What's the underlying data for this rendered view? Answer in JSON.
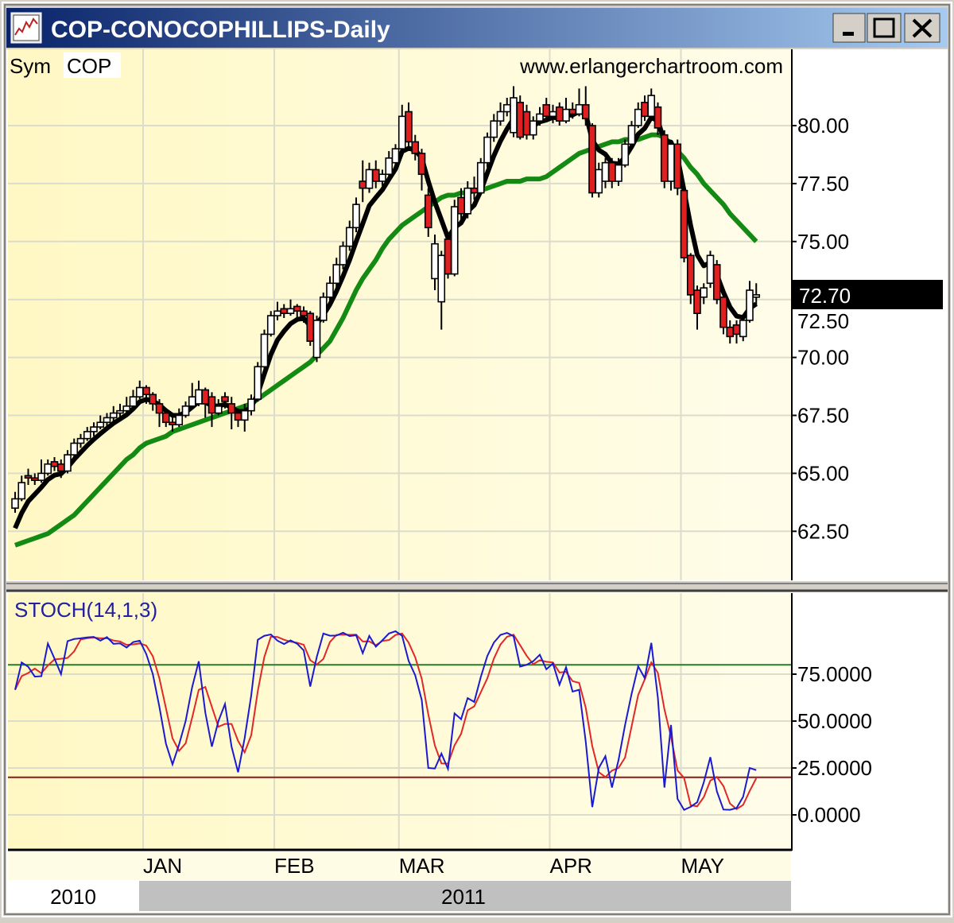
{
  "window": {
    "title": "COP-CONOCOPHILLIPS-Daily",
    "buttons": {
      "minimize": "minimize",
      "maximize": "maximize",
      "close": "close"
    }
  },
  "header": {
    "sym_label": "Sym",
    "sym_value": "COP",
    "watermark": "www.erlangerchartroom.com"
  },
  "colors": {
    "titlebar_start": "#0a246a",
    "titlebar_end": "#a6caf0",
    "down_candle": "#e02020",
    "up_candle": "#ffffff",
    "fast_ma": "#000000",
    "slow_ma": "#138a13",
    "stoch_k": "#1a1ad0",
    "stoch_d": "#e02828",
    "overbought_line": "#2a7a2a",
    "oversold_line": "#8a1a1a",
    "price_bg": "#fffbd8"
  },
  "chart_data": [
    {
      "type": "candlestick",
      "title": "COP-CONOCOPHILLIPS-Daily",
      "yticks": [
        "62.50",
        "65.00",
        "67.50",
        "70.00",
        "72.50",
        "75.00",
        "77.50",
        "80.00"
      ],
      "ylim": [
        60.3,
        83.3
      ],
      "last_price_label": "72.70",
      "last_price": 72.7,
      "grid": true,
      "ohlc": [
        [
          63.5,
          64.2,
          63.3,
          63.9
        ],
        [
          63.9,
          64.9,
          63.8,
          64.6
        ],
        [
          64.9,
          65.2,
          64.5,
          64.8
        ],
        [
          64.8,
          65.0,
          64.5,
          64.7
        ],
        [
          64.7,
          65.6,
          64.6,
          65.0
        ],
        [
          65.0,
          65.6,
          64.9,
          65.4
        ],
        [
          65.5,
          65.7,
          65.1,
          65.3
        ],
        [
          65.4,
          65.6,
          64.8,
          65.1
        ],
        [
          65.1,
          66.0,
          65.0,
          65.8
        ],
        [
          65.8,
          66.5,
          65.7,
          66.3
        ],
        [
          66.3,
          66.7,
          66.1,
          66.5
        ],
        [
          66.5,
          67.0,
          66.4,
          66.8
        ],
        [
          66.8,
          67.2,
          66.6,
          67.0
        ],
        [
          67.0,
          67.5,
          66.9,
          67.2
        ],
        [
          67.2,
          67.6,
          67.0,
          67.4
        ],
        [
          67.4,
          67.9,
          67.2,
          67.6
        ],
        [
          67.6,
          68.0,
          67.4,
          67.7
        ],
        [
          67.7,
          68.3,
          67.6,
          67.9
        ],
        [
          67.9,
          68.6,
          67.8,
          68.3
        ],
        [
          68.3,
          69.0,
          68.2,
          68.7
        ],
        [
          68.7,
          68.8,
          68.0,
          68.4
        ],
        [
          68.4,
          68.5,
          67.7,
          68.0
        ],
        [
          68.0,
          68.2,
          67.0,
          67.6
        ],
        [
          67.6,
          67.8,
          67.0,
          67.2
        ],
        [
          67.2,
          67.5,
          66.8,
          67.1
        ],
        [
          67.1,
          67.8,
          67.0,
          67.5
        ],
        [
          67.5,
          68.1,
          67.4,
          67.9
        ],
        [
          67.9,
          68.9,
          67.8,
          68.3
        ],
        [
          68.0,
          69.0,
          67.9,
          68.6
        ],
        [
          68.6,
          68.7,
          67.4,
          68.0
        ],
        [
          68.3,
          68.5,
          67.0,
          67.6
        ],
        [
          67.6,
          68.2,
          67.5,
          67.9
        ],
        [
          68.3,
          68.5,
          67.8,
          68.1
        ],
        [
          68.0,
          68.3,
          66.9,
          67.6
        ],
        [
          67.6,
          67.8,
          67.0,
          67.3
        ],
        [
          67.3,
          68.0,
          66.8,
          67.7
        ],
        [
          67.7,
          68.4,
          67.5,
          68.2
        ],
        [
          68.2,
          69.8,
          68.1,
          69.6
        ],
        [
          69.6,
          71.2,
          69.5,
          71.0
        ],
        [
          71.0,
          72.0,
          70.9,
          71.8
        ],
        [
          71.8,
          72.4,
          71.6,
          72.0
        ],
        [
          72.1,
          72.3,
          71.7,
          71.9
        ],
        [
          71.9,
          72.5,
          71.8,
          72.1
        ],
        [
          72.2,
          72.3,
          71.7,
          72.0
        ],
        [
          72.0,
          72.2,
          71.5,
          71.8
        ],
        [
          71.9,
          72.0,
          70.5,
          70.7
        ],
        [
          70.0,
          71.8,
          69.8,
          71.6
        ],
        [
          71.6,
          72.8,
          71.5,
          72.6
        ],
        [
          72.6,
          73.5,
          72.4,
          73.2
        ],
        [
          73.2,
          74.3,
          73.0,
          74.0
        ],
        [
          74.0,
          75.0,
          73.8,
          74.8
        ],
        [
          74.8,
          75.9,
          74.6,
          75.6
        ],
        [
          75.6,
          76.9,
          75.4,
          76.6
        ],
        [
          77.6,
          78.5,
          76.7,
          77.3
        ],
        [
          77.3,
          78.4,
          77.1,
          78.1
        ],
        [
          78.1,
          78.5,
          77.3,
          77.6
        ],
        [
          77.6,
          78.1,
          77.4,
          77.9
        ],
        [
          77.9,
          78.9,
          77.8,
          78.6
        ],
        [
          78.4,
          79.2,
          78.3,
          79.0
        ],
        [
          79.0,
          80.9,
          78.9,
          80.4
        ],
        [
          80.6,
          81.0,
          79.0,
          79.3
        ],
        [
          79.3,
          79.6,
          78.5,
          78.8
        ],
        [
          78.8,
          79.0,
          77.2,
          77.9
        ],
        [
          77.0,
          77.3,
          75.2,
          75.6
        ],
        [
          73.4,
          75.3,
          72.9,
          74.9
        ],
        [
          72.4,
          74.6,
          71.2,
          74.4
        ],
        [
          75.1,
          75.3,
          73.4,
          73.6
        ],
        [
          73.6,
          76.8,
          73.5,
          76.5
        ],
        [
          76.9,
          77.3,
          75.9,
          76.2
        ],
        [
          76.2,
          77.6,
          76.0,
          77.3
        ],
        [
          77.3,
          77.8,
          76.8,
          77.1
        ],
        [
          77.1,
          78.6,
          77.0,
          78.4
        ],
        [
          78.4,
          79.7,
          78.2,
          79.5
        ],
        [
          79.5,
          80.5,
          79.3,
          80.2
        ],
        [
          80.2,
          81.0,
          80.0,
          80.6
        ],
        [
          80.6,
          81.2,
          80.4,
          80.9
        ],
        [
          79.7,
          81.7,
          79.5,
          81.2
        ],
        [
          81.0,
          81.3,
          79.4,
          79.5
        ],
        [
          80.6,
          80.9,
          79.4,
          79.6
        ],
        [
          79.6,
          80.4,
          79.4,
          80.2
        ],
        [
          80.2,
          80.8,
          80.0,
          80.5
        ],
        [
          80.9,
          81.2,
          80.3,
          80.4
        ],
        [
          80.4,
          80.9,
          80.1,
          80.6
        ],
        [
          80.8,
          81.0,
          80.0,
          80.2
        ],
        [
          80.2,
          81.2,
          80.1,
          80.7
        ],
        [
          80.7,
          81.0,
          80.3,
          80.5
        ],
        [
          80.5,
          81.6,
          80.4,
          80.9
        ],
        [
          80.9,
          81.7,
          80.0,
          80.3
        ],
        [
          80.0,
          80.1,
          76.9,
          77.1
        ],
        [
          77.1,
          78.4,
          76.9,
          78.1
        ],
        [
          77.6,
          78.6,
          77.3,
          78.4
        ],
        [
          78.4,
          78.6,
          77.3,
          77.6
        ],
        [
          77.6,
          78.6,
          77.4,
          78.3
        ],
        [
          78.3,
          79.4,
          78.2,
          79.2
        ],
        [
          79.2,
          80.2,
          79.0,
          80.0
        ],
        [
          80.0,
          81.0,
          79.9,
          80.7
        ],
        [
          81.0,
          81.3,
          80.2,
          80.4
        ],
        [
          80.4,
          81.6,
          80.3,
          81.3
        ],
        [
          80.8,
          81.0,
          79.6,
          79.9
        ],
        [
          79.6,
          79.8,
          77.3,
          77.6
        ],
        [
          77.6,
          79.3,
          77.2,
          79.2
        ],
        [
          79.2,
          79.4,
          77.0,
          77.3
        ],
        [
          77.2,
          77.5,
          74.1,
          74.3
        ],
        [
          74.4,
          74.5,
          72.3,
          72.7
        ],
        [
          72.9,
          73.1,
          71.2,
          71.9
        ],
        [
          72.6,
          73.2,
          72.3,
          73.0
        ],
        [
          73.2,
          74.6,
          73.0,
          74.4
        ],
        [
          74.0,
          74.2,
          72.3,
          72.5
        ],
        [
          72.6,
          72.7,
          71.0,
          71.3
        ],
        [
          71.3,
          71.6,
          70.6,
          70.9
        ],
        [
          71.4,
          71.6,
          70.6,
          71.0
        ],
        [
          70.9,
          71.7,
          70.7,
          71.6
        ],
        [
          71.6,
          73.3,
          71.5,
          72.9
        ],
        [
          72.6,
          73.2,
          72.2,
          72.7
        ]
      ],
      "slow_ma": [
        61.9,
        62.0,
        62.1,
        62.2,
        62.3,
        62.4,
        62.6,
        62.8,
        63.0,
        63.2,
        63.5,
        63.8,
        64.1,
        64.4,
        64.7,
        65.0,
        65.3,
        65.6,
        65.8,
        66.1,
        66.3,
        66.4,
        66.5,
        66.6,
        66.8,
        66.9,
        67.0,
        67.1,
        67.2,
        67.3,
        67.4,
        67.5,
        67.6,
        67.7,
        67.8,
        67.9,
        68.0,
        68.2,
        68.4,
        68.6,
        68.8,
        69.0,
        69.2,
        69.4,
        69.6,
        69.8,
        70.1,
        70.4,
        70.7,
        71.2,
        71.7,
        72.3,
        72.9,
        73.4,
        73.8,
        74.2,
        74.7,
        75.1,
        75.4,
        75.7,
        75.9,
        76.1,
        76.3,
        76.5,
        76.7,
        76.9,
        77.0,
        77.0,
        77.1,
        77.1,
        77.2,
        77.2,
        77.3,
        77.4,
        77.5,
        77.6,
        77.6,
        77.6,
        77.7,
        77.7,
        77.7,
        77.8,
        78.0,
        78.2,
        78.4,
        78.6,
        78.8,
        78.9,
        79.0,
        79.1,
        79.2,
        79.3,
        79.3,
        79.4,
        79.4,
        79.4,
        79.5,
        79.6,
        79.6,
        79.5,
        79.2,
        78.9,
        78.6,
        78.2,
        77.9,
        77.5,
        77.2,
        76.9,
        76.6,
        76.2,
        75.9,
        75.6,
        75.3,
        75.0
      ],
      "month_starts": [
        {
          "label": "JAN",
          "index": 20
        },
        {
          "label": "FEB",
          "index": 40
        },
        {
          "label": "MAR",
          "index": 59
        },
        {
          "label": "APR",
          "index": 82
        },
        {
          "label": "MAY",
          "index": 102
        }
      ],
      "years": [
        {
          "label": "2010"
        },
        {
          "label": "2011"
        }
      ]
    },
    {
      "type": "line",
      "title": "STOCH(14,1,3)",
      "k_period": 14,
      "k_smooth": 1,
      "d_period": 3,
      "yticks": [
        "0.0000",
        "25.0000",
        "50.0000",
        "75.0000"
      ],
      "ylim": [
        -18,
        100
      ],
      "overbought": 80,
      "oversold": 20,
      "grid": true
    }
  ]
}
